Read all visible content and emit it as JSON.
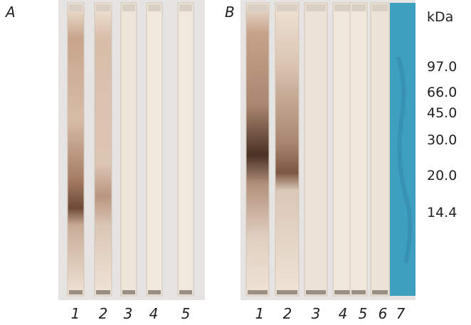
{
  "panels": [
    {
      "label": "A",
      "lanes": [
        "1",
        "2",
        "3",
        "4",
        "5"
      ]
    },
    {
      "label": "B",
      "lanes": [
        "1",
        "2",
        "3",
        "4",
        "5",
        "6",
        "7"
      ]
    }
  ],
  "markers": {
    "unit": "kDa",
    "labels": [
      "97.0",
      "66.0",
      "45.0",
      "30.0",
      "20.0",
      "14.4"
    ]
  }
}
